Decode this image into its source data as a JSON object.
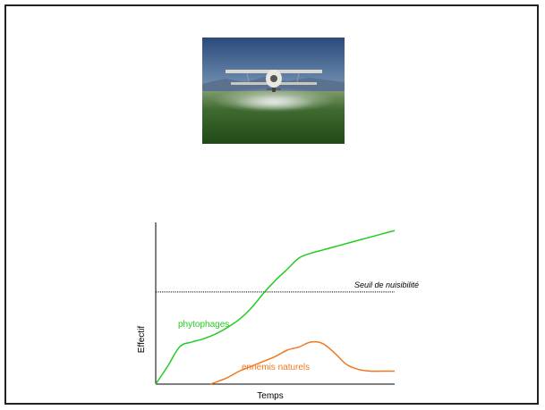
{
  "photo": {
    "icon": "crop-duster-plane-spraying-field-photo"
  },
  "chart_data": {
    "type": "line",
    "xlabel": "Temps",
    "ylabel": "Effectif",
    "xlim": [
      0,
      100
    ],
    "ylim": [
      0,
      100
    ],
    "grid": false,
    "threshold": {
      "label": "Seuil de nuisibilité",
      "value": 57
    },
    "series": [
      {
        "name": "phytophages",
        "color": "#22cc22",
        "x": [
          0,
          5,
          10,
          15,
          20,
          25,
          30,
          35,
          40,
          45,
          50,
          55,
          60,
          65,
          70,
          75,
          80,
          85,
          90,
          95,
          100
        ],
        "y": [
          0,
          11,
          23,
          26,
          28,
          31,
          35,
          40,
          47,
          56,
          64,
          71,
          78,
          81,
          83,
          85,
          87,
          89,
          91,
          93,
          95
        ]
      },
      {
        "name": "ennemis naturels",
        "color": "#f07820",
        "x": [
          23,
          30,
          35,
          40,
          45,
          50,
          55,
          60,
          65,
          70,
          75,
          80,
          85,
          90,
          95,
          100
        ],
        "y": [
          0,
          4,
          8,
          11,
          14,
          17,
          21,
          23,
          26,
          25,
          19,
          12,
          9,
          8,
          8,
          8
        ]
      }
    ]
  }
}
